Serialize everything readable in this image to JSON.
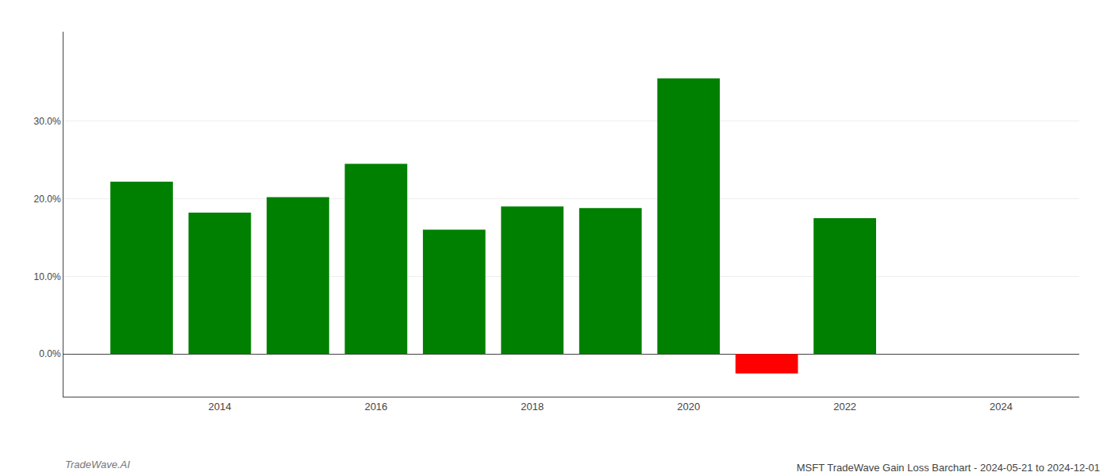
{
  "chart_data": {
    "type": "bar",
    "title": "MSFT TradeWave Gain Loss Barchart - 2024-05-21 to 2024-12-01",
    "annotations": [
      "TradeWave.AI"
    ],
    "x": [
      2013,
      2014,
      2015,
      2016,
      2017,
      2018,
      2019,
      2020,
      2021,
      2022
    ],
    "values": [
      0.222,
      0.182,
      0.202,
      0.245,
      0.16,
      0.19,
      0.188,
      0.355,
      -0.025,
      0.175
    ],
    "colors": [
      "#008000",
      "#008000",
      "#008000",
      "#008000",
      "#008000",
      "#008000",
      "#008000",
      "#008000",
      "#ff0000",
      "#008000"
    ],
    "xlim": [
      2012.0,
      2025.0
    ],
    "ylim": [
      -0.055,
      0.415
    ],
    "xticks": [
      2014,
      2016,
      2018,
      2020,
      2022,
      2024
    ],
    "yticks": [
      {
        "value": 0.0,
        "label": "0.0%"
      },
      {
        "value": 0.1,
        "label": "10.0%"
      },
      {
        "value": 0.2,
        "label": "20.0%"
      },
      {
        "value": 0.3,
        "label": "30.0%"
      }
    ],
    "grid": "y"
  }
}
